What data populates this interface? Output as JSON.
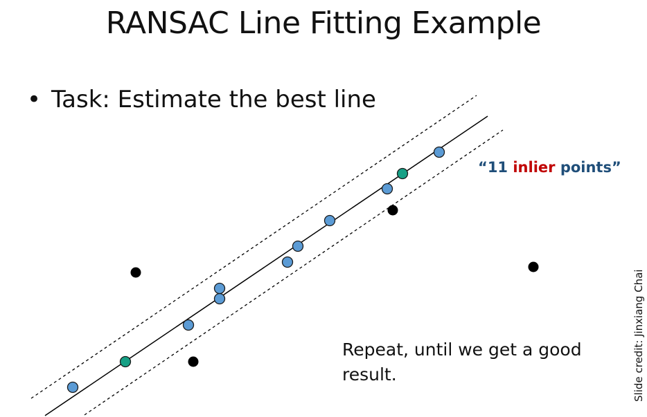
{
  "slide": {
    "title": "RANSAC Line Fitting Example",
    "bullet": "Task: Estimate the best line",
    "callout": {
      "open_quote": "“",
      "count": "11",
      "highlight": "inlier",
      "rest": "points”",
      "colors": {
        "base": "#1f4e79",
        "highlight": "#c00000"
      }
    },
    "note": "Repeat, until we get a good result.",
    "credit": "Slide credit: Jinxiang Chai"
  },
  "diagram": {
    "colors": {
      "inlier": "#5b9bd5",
      "sample": "#16a085",
      "outlier": "#000000",
      "line": "#000000"
    },
    "point_kinds": [
      "sample",
      "inlier",
      "inlier",
      "inlier",
      "inlier",
      "inlier",
      "inlier",
      "inlier",
      "inlier",
      "sample",
      "inlier",
      "outlier",
      "outlier",
      "outlier",
      "outlier"
    ]
  }
}
